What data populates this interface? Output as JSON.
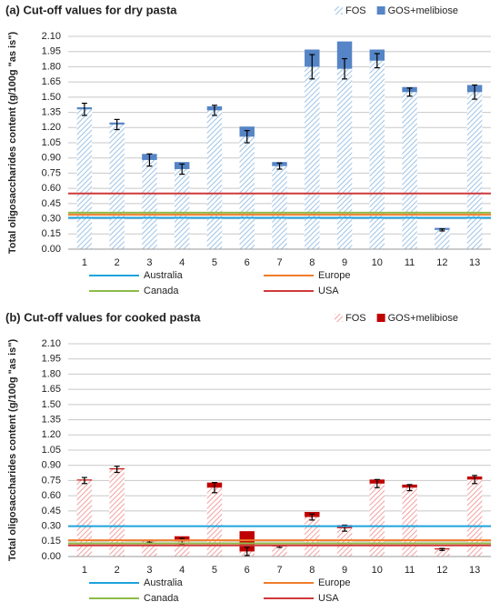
{
  "chart_data": [
    {
      "type": "bar",
      "stacked": true,
      "title": "(a) Cut-off values for dry pasta",
      "y_label": "Total oligosaccharides content (g/100g \"as is\")",
      "categories": [
        "1",
        "2",
        "3",
        "4",
        "5",
        "6",
        "7",
        "8",
        "9",
        "10",
        "11",
        "12",
        "13"
      ],
      "series": [
        {
          "name": "FOS",
          "color": "#9dc3e6",
          "hatch": true,
          "values": [
            1.38,
            1.23,
            0.88,
            0.79,
            1.37,
            1.11,
            0.82,
            1.8,
            1.78,
            1.86,
            1.55,
            0.19,
            1.55
          ],
          "errors": [
            0.06,
            0.05,
            0.06,
            0.05,
            0.05,
            0.06,
            0.03,
            0.12,
            0.1,
            0.07,
            0.04,
            0.01,
            0.07
          ]
        },
        {
          "name": "GOS+melibiose",
          "color": "#5585c6",
          "hatch": false,
          "values": [
            0.02,
            0.02,
            0.06,
            0.07,
            0.04,
            0.1,
            0.04,
            0.17,
            0.27,
            0.11,
            0.05,
            0.02,
            0.07
          ]
        }
      ],
      "cutoffs": [
        {
          "name": "Australia",
          "color": "#1fa3dc",
          "value": 0.31
        },
        {
          "name": "Europe",
          "color": "#f07c2c",
          "value": 0.34
        },
        {
          "name": "Canada",
          "color": "#8dbb4a",
          "value": 0.36
        },
        {
          "name": "USA",
          "color": "#d0393b",
          "value": 0.55
        }
      ],
      "ylim": [
        0,
        2.1
      ],
      "yticks": [
        {
          "value": 0,
          "label": "0.00"
        },
        0.15,
        {
          "value": 0.3,
          "label": "0.30"
        },
        0.45,
        {
          "value": 0.6,
          "label": "0.60"
        },
        0.75,
        {
          "value": 0.9,
          "label": "0.90"
        },
        1.05,
        {
          "value": 1.2,
          "label": "1.20"
        },
        1.35,
        {
          "value": 1.5,
          "label": "1.50"
        },
        1.65,
        {
          "value": 1.8,
          "label": "1.80"
        },
        1.95,
        {
          "value": 2.1,
          "label": "2.10"
        }
      ],
      "grid": true
    },
    {
      "type": "bar",
      "stacked": true,
      "title": "(b) Cut-off values for cooked pasta",
      "y_label": "Total oligosaccharides content (g/100g \"as is\")",
      "categories": [
        "1",
        "2",
        "3",
        "4",
        "5",
        "6",
        "7",
        "8",
        "9",
        "10",
        "11",
        "12",
        "13"
      ],
      "series": [
        {
          "name": "FOS",
          "color": "#f2a0a0",
          "hatch": true,
          "values": [
            0.75,
            0.86,
            0.15,
            0.15,
            0.68,
            0.05,
            0.1,
            0.39,
            0.28,
            0.72,
            0.68,
            0.07,
            0.76
          ],
          "errors": [
            0.03,
            0.03,
            0.01,
            0.03,
            0.05,
            0.04,
            0.01,
            0.03,
            0.03,
            0.04,
            0.03,
            0.01,
            0.04
          ]
        },
        {
          "name": "GOS+melibiose",
          "color": "#c00000",
          "hatch": false,
          "values": [
            0.01,
            0.01,
            0.01,
            0.05,
            0.05,
            0.2,
            0.01,
            0.05,
            0.03,
            0.04,
            0.03,
            0.01,
            0.03
          ]
        }
      ],
      "cutoffs": [
        {
          "name": "Australia",
          "color": "#1fa3dc",
          "value": 0.3
        },
        {
          "name": "Europe",
          "color": "#f07c2c",
          "value": 0.16
        },
        {
          "name": "Canada",
          "color": "#8dbb4a",
          "value": 0.13
        },
        {
          "name": "USA",
          "color": "#d0393b",
          "value": 0.11
        }
      ],
      "ylim": [
        0,
        2.1
      ],
      "yticks": [
        {
          "value": 0,
          "label": "0.00"
        },
        0.15,
        {
          "value": 0.3,
          "label": "0.30"
        },
        0.45,
        {
          "value": 0.6,
          "label": "0.60"
        },
        0.75,
        {
          "value": 0.9,
          "label": "0.90"
        },
        1.05,
        {
          "value": 1.2,
          "label": "1.20"
        },
        1.35,
        {
          "value": 1.5,
          "label": "1.50"
        },
        1.65,
        {
          "value": 1.8,
          "label": "1.80"
        },
        1.95,
        {
          "value": 2.1,
          "label": "2.10"
        }
      ],
      "grid": true
    }
  ]
}
